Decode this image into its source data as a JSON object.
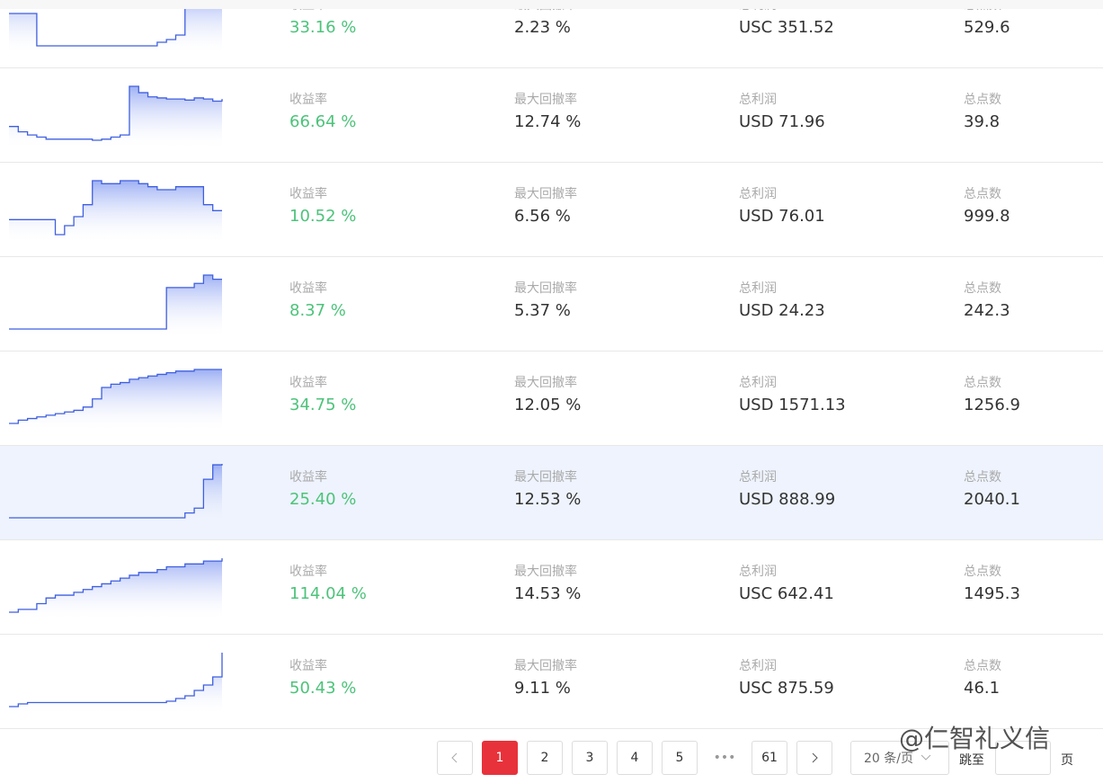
{
  "rows": [
    {
      "return_label": "收益率",
      "return": "33.16 %",
      "drawdown_label": "最大回撤率",
      "drawdown": "2.23 %",
      "profit_label": "总利润",
      "profit": "USC 351.52",
      "points_label": "总点数",
      "points": "529.6",
      "spark": [
        36,
        36,
        36,
        0,
        0,
        0,
        0,
        0,
        0,
        0,
        0,
        0,
        0,
        0,
        0,
        0,
        4,
        7,
        12,
        60,
        60,
        60,
        60,
        60
      ]
    },
    {
      "return_label": "收益率",
      "return": "66.64 %",
      "drawdown_label": "最大回撤率",
      "drawdown": "12.74 %",
      "profit_label": "总利润",
      "profit": "USD 71.96",
      "points_label": "总点数",
      "points": "39.8",
      "spark": [
        20,
        15,
        12,
        10,
        8,
        8,
        8,
        8,
        8,
        7,
        8,
        10,
        12,
        58,
        52,
        48,
        47,
        46,
        46,
        45,
        47,
        46,
        44,
        46
      ]
    },
    {
      "return_label": "收益率",
      "return": "10.52 %",
      "drawdown_label": "最大回撤率",
      "drawdown": "6.56 %",
      "profit_label": "总利润",
      "profit": "USD 76.01",
      "points_label": "总点数",
      "points": "999.8",
      "spark": [
        5,
        5,
        5,
        5,
        5,
        0,
        3,
        6,
        10,
        18,
        17,
        17,
        18,
        18,
        17,
        16,
        15,
        15,
        16,
        16,
        16,
        10,
        8,
        8
      ]
    },
    {
      "return_label": "收益率",
      "return": "8.37 %",
      "drawdown_label": "最大回撤率",
      "drawdown": "5.37 %",
      "profit_label": "总利润",
      "profit": "USD 24.23",
      "points_label": "总点数",
      "points": "242.3",
      "spark": [
        0,
        0,
        0,
        0,
        0,
        0,
        0,
        0,
        0,
        0,
        0,
        0,
        0,
        0,
        0,
        0,
        0,
        10,
        10,
        10,
        11,
        13,
        12,
        12
      ]
    },
    {
      "return_label": "收益率",
      "return": "34.75 %",
      "drawdown_label": "最大回撤率",
      "drawdown": "12.05 %",
      "profit_label": "总利润",
      "profit": "USD 1571.13",
      "points_label": "总点数",
      "points": "1256.9",
      "spark": [
        0,
        2,
        3,
        4,
        5,
        6,
        7,
        8,
        10,
        15,
        22,
        24,
        25,
        27,
        28,
        29,
        30,
        31,
        32,
        32,
        33,
        33,
        33,
        33
      ]
    },
    {
      "return_label": "收益率",
      "return": "25.40 %",
      "drawdown_label": "最大回撤率",
      "drawdown": "12.53 %",
      "profit_label": "总利润",
      "profit": "USD 888.99",
      "points_label": "总点数",
      "points": "2040.1",
      "spark": [
        0,
        0,
        0,
        0,
        0,
        0,
        0,
        0,
        0,
        0,
        0,
        0,
        0,
        0,
        0,
        0,
        0,
        0,
        0,
        5,
        10,
        40,
        55,
        56
      ]
    },
    {
      "return_label": "收益率",
      "return": "114.04 %",
      "drawdown_label": "最大回撤率",
      "drawdown": "14.53 %",
      "profit_label": "总利润",
      "profit": "USC 642.41",
      "points_label": "总点数",
      "points": "1495.3",
      "spark": [
        0,
        1,
        1,
        3,
        5,
        6,
        6,
        7,
        8,
        9,
        10,
        11,
        12,
        13,
        14,
        14,
        15,
        16,
        16,
        17,
        17,
        18,
        18,
        19
      ]
    },
    {
      "return_label": "收益率",
      "return": "50.43 %",
      "drawdown_label": "最大回撤率",
      "drawdown": "9.11 %",
      "profit_label": "总利润",
      "profit": "USC 875.59",
      "points_label": "总点数",
      "points": "46.1",
      "spark": [
        0,
        2,
        3,
        3,
        3,
        3,
        3,
        3,
        3,
        3,
        3,
        3,
        3,
        3,
        3,
        3,
        3,
        4,
        6,
        8,
        12,
        16,
        22,
        40
      ]
    }
  ],
  "pagination": {
    "pages": [
      "1",
      "2",
      "3",
      "4",
      "5",
      "•••",
      "61"
    ],
    "page_size": "20 条/页",
    "jump_label": "跳至",
    "page_suffix": "页"
  },
  "watermark": "@仁智礼义信"
}
